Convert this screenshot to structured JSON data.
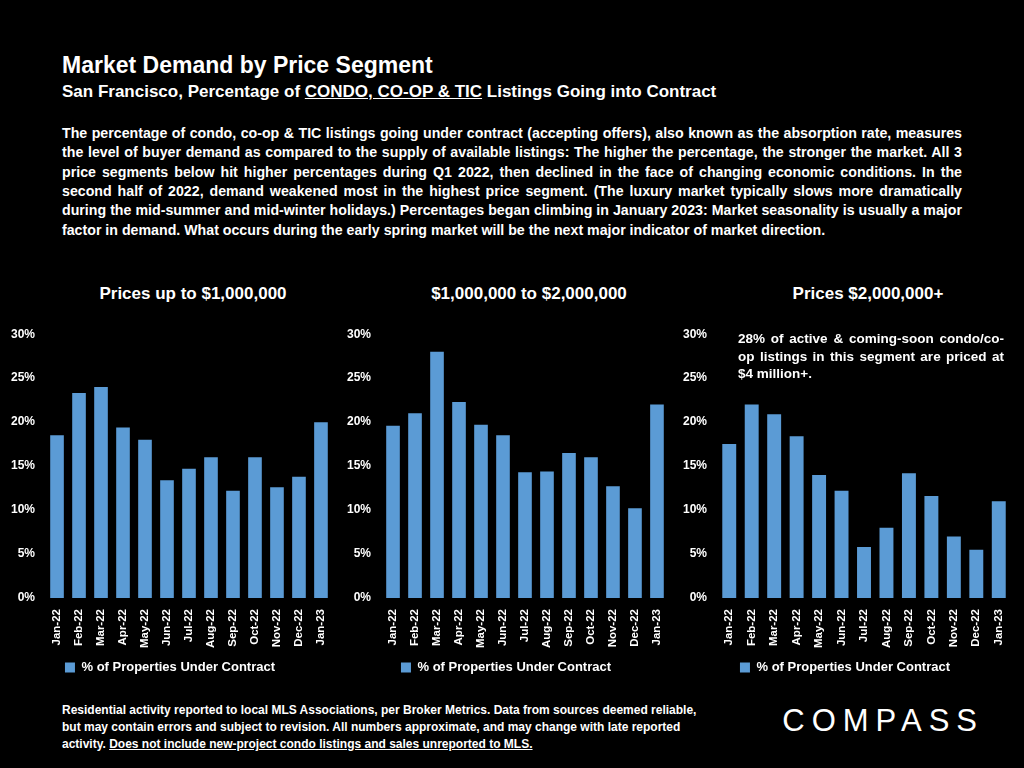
{
  "header": {
    "title": "Market Demand by Price Segment",
    "subtitle": [
      "San Francisco, Percentage of ",
      "CONDO, CO-OP & TIC",
      " Listings Going into Contract"
    ],
    "description": "The percentage of condo, co-op & TIC listings going under contract (accepting offers), also known as the absorption rate, measures the level of buyer demand as compared to the supply of available listings:  The higher the percentage, the stronger the market. All 3 price segments below hit higher percentages during Q1 2022, then declined in the face of changing economic conditions. In the second half of 2022, demand weakened most in the highest price segment. (The luxury market typically slows more dramatically during the mid-summer and mid-winter holidays.) Percentages began climbing in January 2023: Market seasonality is usually a major factor in demand. What occurs during the early spring market will be the next major indicator of market direction."
  },
  "chart_data": [
    {
      "type": "bar",
      "title": "Prices up to $1,000,000",
      "categories": [
        "Jan-22",
        "Feb-22",
        "Mar-22",
        "Apr-22",
        "May-22",
        "Jun-22",
        "Jul-22",
        "Aug-22",
        "Sep-22",
        "Oct-22",
        "Nov-22",
        "Dec-22",
        "Jan-23"
      ],
      "series": [
        {
          "name": "% of Properties Under Contract",
          "color": "#5b9bd5",
          "values": [
            18.5,
            23.3,
            24.0,
            19.4,
            18.0,
            13.4,
            14.7,
            16.0,
            12.2,
            16.0,
            12.6,
            13.8,
            20.0
          ]
        }
      ],
      "ylim": [
        0,
        30
      ],
      "yticks": [
        {
          "value": 0,
          "label": "0%"
        },
        {
          "value": 5,
          "label": "5%"
        },
        {
          "value": 10,
          "label": "10%"
        },
        {
          "value": 15,
          "label": "15%"
        },
        {
          "value": 20,
          "label": "20%"
        },
        {
          "value": 25,
          "label": "25%"
        },
        {
          "value": 30,
          "label": "30%"
        }
      ],
      "grid": false,
      "legend": "bottom"
    },
    {
      "type": "bar",
      "title": "$1,000,000 to $2,000,000",
      "categories": [
        "Jan-22",
        "Feb-22",
        "Mar-22",
        "Apr-22",
        "May-22",
        "Jun-22",
        "Jul-22",
        "Aug-22",
        "Sep-22",
        "Oct-22",
        "Nov-22",
        "Dec-22",
        "Jan-23"
      ],
      "series": [
        {
          "name": "% of Properties Under Contract",
          "color": "#5b9bd5",
          "values": [
            19.6,
            21.0,
            28.0,
            22.3,
            19.7,
            18.5,
            14.3,
            14.4,
            16.5,
            16.0,
            12.7,
            10.2,
            22.0
          ]
        }
      ],
      "ylim": [
        0,
        30
      ],
      "yticks": [
        {
          "value": 0,
          "label": "0%"
        },
        {
          "value": 5,
          "label": "5%"
        },
        {
          "value": 10,
          "label": "10%"
        },
        {
          "value": 15,
          "label": "15%"
        },
        {
          "value": 20,
          "label": "20%"
        },
        {
          "value": 25,
          "label": "25%"
        },
        {
          "value": 30,
          "label": "30%"
        }
      ],
      "grid": false,
      "legend": "bottom"
    },
    {
      "type": "bar",
      "title": "Prices $2,000,000+",
      "annotation": "28% of active & coming-soon condo/co-op listings in this segment are priced at $4 million+.",
      "categories": [
        "Jan-22",
        "Feb-22",
        "Mar-22",
        "Apr-22",
        "May-22",
        "Jun-22",
        "Jul-22",
        "Aug-22",
        "Sep-22",
        "Oct-22",
        "Nov-22",
        "Dec-22",
        "Jan-23"
      ],
      "series": [
        {
          "name": "% of Properties Under Contract",
          "color": "#5b9bd5",
          "values": [
            17.5,
            22.0,
            20.9,
            18.4,
            14.0,
            12.2,
            5.8,
            8.0,
            14.2,
            11.6,
            7.0,
            5.5,
            11.0
          ]
        }
      ],
      "ylim": [
        0,
        30
      ],
      "yticks": [
        {
          "value": 0,
          "label": "0%"
        },
        {
          "value": 5,
          "label": "5%"
        },
        {
          "value": 10,
          "label": "10%"
        },
        {
          "value": 15,
          "label": "15%"
        },
        {
          "value": 20,
          "label": "20%"
        },
        {
          "value": 25,
          "label": "25%"
        },
        {
          "value": 30,
          "label": "30%"
        }
      ],
      "grid": false,
      "legend": "bottom"
    }
  ],
  "footer": {
    "note": [
      "Residential activity reported to local MLS Associations, per Broker Metrics. Data from sources deemed reliable, but may contain errors and subject to revision. All numbers approximate, and may change with late reported activity.",
      "Does not include new-project condo listings and sales unreported to MLS."
    ],
    "logo": "COMPASS"
  }
}
